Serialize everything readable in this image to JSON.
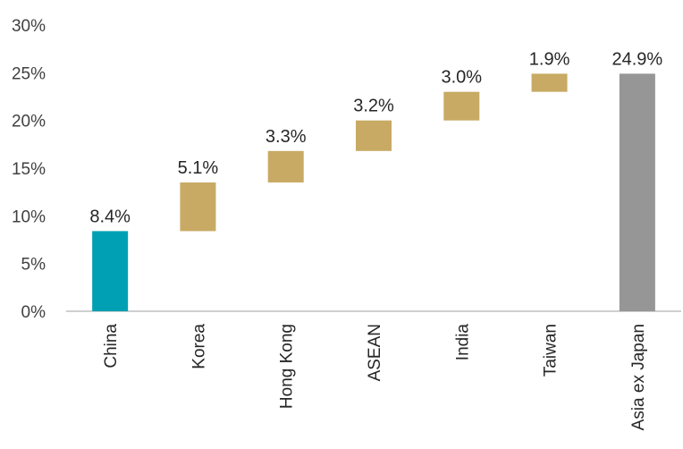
{
  "chart_data": {
    "type": "bar",
    "subtype": "waterfall",
    "title": "",
    "xlabel": "",
    "ylabel": "",
    "ylim": [
      0,
      30
    ],
    "yticks": [
      "0%",
      "5%",
      "10%",
      "15%",
      "20%",
      "25%",
      "30%"
    ],
    "grid": false,
    "legend": "none",
    "categories": [
      "China",
      "Korea",
      "Hong Kong",
      "ASEAN",
      "India",
      "Taiwan",
      "Asia ex Japan"
    ],
    "values": [
      8.4,
      5.1,
      3.3,
      3.2,
      3.0,
      1.9,
      24.9
    ],
    "labels": [
      "8.4%",
      "5.1%",
      "3.3%",
      "3.2%",
      "3.0%",
      "1.9%",
      "24.9%"
    ],
    "bar_kinds": [
      "start",
      "step",
      "step",
      "step",
      "step",
      "step",
      "total"
    ],
    "colors": {
      "start": "#00a0b4",
      "step": "#c8aa64",
      "total": "#969696",
      "axis": "#bfbfbf"
    }
  }
}
